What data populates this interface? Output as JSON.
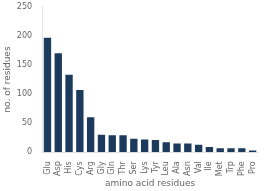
{
  "chart_data": {
    "type": "bar",
    "categories": [
      "Glu",
      "Asp",
      "His",
      "Cys",
      "Arg",
      "Gly",
      "Gln",
      "Thr",
      "Ser",
      "Lys",
      "Tyr",
      "Leu",
      "Ala",
      "Asn",
      "Val",
      "Ile",
      "Met",
      "Trp",
      "Phe",
      "Pro"
    ],
    "values": [
      197,
      170,
      133,
      107,
      60,
      30,
      29,
      29,
      23,
      22,
      21,
      17,
      15,
      15,
      13,
      9,
      7,
      7,
      7,
      3
    ],
    "color": "#1b3a5c",
    "xlabel": "amino acid residues",
    "ylabel": "no. of residues",
    "ylim": [
      0,
      250
    ],
    "yticks": [
      0,
      50,
      100,
      150,
      200,
      250
    ],
    "grid": false
  }
}
